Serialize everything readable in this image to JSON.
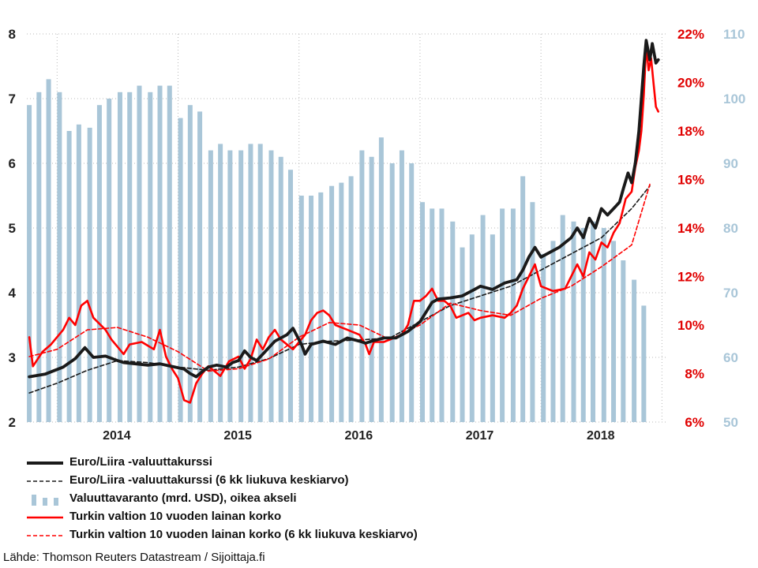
{
  "chart_data": {
    "type": "line",
    "title": "",
    "x_ticks": [
      "2014",
      "2015",
      "2016",
      "2017",
      "2018"
    ],
    "x_range": [
      2013.25,
      2018.55
    ],
    "axes": {
      "left": {
        "ticks": [
          "2",
          "3",
          "4",
          "5",
          "6",
          "7",
          "8"
        ],
        "ylim": [
          2,
          8
        ]
      },
      "right_rate": {
        "ticks": [
          "6%",
          "8%",
          "10%",
          "12%",
          "14%",
          "16%",
          "18%",
          "20%",
          "22%"
        ],
        "ylim": [
          6,
          22
        ]
      },
      "right_reserves": {
        "ticks": [
          "50",
          "60",
          "70",
          "80",
          "90",
          "100",
          "110"
        ],
        "ylim": [
          50,
          110
        ]
      }
    },
    "grid": "dotted",
    "legend_position": "bottom",
    "series": [
      {
        "name": "Euro/Liira -valuuttakurssi",
        "axis": "left",
        "style": "solid-thick",
        "color": "#1a1a1a",
        "points": [
          [
            2013.27,
            2.7
          ],
          [
            2013.4,
            2.74
          ],
          [
            2013.55,
            2.85
          ],
          [
            2013.65,
            2.98
          ],
          [
            2013.73,
            3.15
          ],
          [
            2013.8,
            3.0
          ],
          [
            2013.9,
            3.02
          ],
          [
            2014.0,
            2.95
          ],
          [
            2014.05,
            2.92
          ],
          [
            2014.15,
            2.9
          ],
          [
            2014.25,
            2.88
          ],
          [
            2014.35,
            2.9
          ],
          [
            2014.45,
            2.86
          ],
          [
            2014.55,
            2.82
          ],
          [
            2014.6,
            2.75
          ],
          [
            2014.65,
            2.7
          ],
          [
            2014.7,
            2.78
          ],
          [
            2014.75,
            2.85
          ],
          [
            2014.82,
            2.88
          ],
          [
            2014.9,
            2.85
          ],
          [
            2014.95,
            2.92
          ],
          [
            2015.0,
            2.95
          ],
          [
            2015.05,
            3.1
          ],
          [
            2015.1,
            3.0
          ],
          [
            2015.15,
            2.95
          ],
          [
            2015.2,
            3.05
          ],
          [
            2015.3,
            3.25
          ],
          [
            2015.4,
            3.35
          ],
          [
            2015.45,
            3.45
          ],
          [
            2015.52,
            3.2
          ],
          [
            2015.55,
            3.05
          ],
          [
            2015.6,
            3.2
          ],
          [
            2015.7,
            3.25
          ],
          [
            2015.8,
            3.2
          ],
          [
            2015.9,
            3.3
          ],
          [
            2016.0,
            3.25
          ],
          [
            2016.05,
            3.22
          ],
          [
            2016.1,
            3.25
          ],
          [
            2016.2,
            3.3
          ],
          [
            2016.3,
            3.3
          ],
          [
            2016.4,
            3.4
          ],
          [
            2016.5,
            3.55
          ],
          [
            2016.55,
            3.7
          ],
          [
            2016.6,
            3.85
          ],
          [
            2016.65,
            3.9
          ],
          [
            2016.75,
            3.92
          ],
          [
            2016.85,
            3.95
          ],
          [
            2016.95,
            4.05
          ],
          [
            2017.0,
            4.1
          ],
          [
            2017.1,
            4.05
          ],
          [
            2017.2,
            4.15
          ],
          [
            2017.3,
            4.2
          ],
          [
            2017.35,
            4.35
          ],
          [
            2017.4,
            4.55
          ],
          [
            2017.45,
            4.7
          ],
          [
            2017.5,
            4.55
          ],
          [
            2017.55,
            4.6
          ],
          [
            2017.65,
            4.7
          ],
          [
            2017.75,
            4.85
          ],
          [
            2017.8,
            5.0
          ],
          [
            2017.85,
            4.85
          ],
          [
            2017.9,
            5.15
          ],
          [
            2017.95,
            5.0
          ],
          [
            2018.0,
            5.3
          ],
          [
            2018.05,
            5.2
          ],
          [
            2018.1,
            5.3
          ],
          [
            2018.15,
            5.4
          ],
          [
            2018.18,
            5.6
          ],
          [
            2018.22,
            5.85
          ],
          [
            2018.25,
            5.7
          ],
          [
            2018.28,
            6.0
          ],
          [
            2018.31,
            6.5
          ],
          [
            2018.33,
            7.0
          ],
          [
            2018.35,
            7.5
          ],
          [
            2018.37,
            7.9
          ],
          [
            2018.4,
            7.6
          ],
          [
            2018.42,
            7.85
          ],
          [
            2018.45,
            7.55
          ],
          [
            2018.47,
            7.6
          ]
        ]
      },
      {
        "name": "Euro/Liira -valuuttakurssi (6 kk liukuva keskiarvo)",
        "axis": "left",
        "style": "dashed",
        "color": "#1a1a1a",
        "points": [
          [
            2013.27,
            2.45
          ],
          [
            2013.5,
            2.6
          ],
          [
            2013.75,
            2.8
          ],
          [
            2014.0,
            2.95
          ],
          [
            2014.25,
            2.92
          ],
          [
            2014.5,
            2.85
          ],
          [
            2014.75,
            2.8
          ],
          [
            2015.0,
            2.85
          ],
          [
            2015.25,
            2.98
          ],
          [
            2015.5,
            3.2
          ],
          [
            2015.75,
            3.25
          ],
          [
            2016.0,
            3.27
          ],
          [
            2016.25,
            3.3
          ],
          [
            2016.5,
            3.55
          ],
          [
            2016.75,
            3.8
          ],
          [
            2017.0,
            3.95
          ],
          [
            2017.25,
            4.1
          ],
          [
            2017.5,
            4.35
          ],
          [
            2017.75,
            4.6
          ],
          [
            2018.0,
            4.85
          ],
          [
            2018.25,
            5.3
          ],
          [
            2018.4,
            5.65
          ]
        ]
      },
      {
        "name": "Valuuttavaranto (mrd. USD), oikea akseli",
        "axis": "right_reserves",
        "style": "bars",
        "color": "#a9c6d8",
        "points": [
          [
            2013.27,
            99
          ],
          [
            2013.35,
            101
          ],
          [
            2013.43,
            103
          ],
          [
            2013.52,
            101
          ],
          [
            2013.6,
            95
          ],
          [
            2013.68,
            96
          ],
          [
            2013.77,
            95.5
          ],
          [
            2013.85,
            99
          ],
          [
            2013.93,
            100
          ],
          [
            2014.02,
            101
          ],
          [
            2014.1,
            101
          ],
          [
            2014.18,
            102
          ],
          [
            2014.27,
            101
          ],
          [
            2014.35,
            102
          ],
          [
            2014.43,
            102
          ],
          [
            2014.52,
            97
          ],
          [
            2014.6,
            99
          ],
          [
            2014.68,
            98
          ],
          [
            2014.77,
            92
          ],
          [
            2014.85,
            93
          ],
          [
            2014.93,
            92
          ],
          [
            2015.02,
            92
          ],
          [
            2015.1,
            93
          ],
          [
            2015.18,
            93
          ],
          [
            2015.27,
            92
          ],
          [
            2015.35,
            91
          ],
          [
            2015.43,
            89
          ],
          [
            2015.52,
            85
          ],
          [
            2015.6,
            85
          ],
          [
            2015.68,
            85.5
          ],
          [
            2015.77,
            86.5
          ],
          [
            2015.85,
            87
          ],
          [
            2015.93,
            88
          ],
          [
            2016.02,
            92
          ],
          [
            2016.1,
            91
          ],
          [
            2016.18,
            94
          ],
          [
            2016.27,
            90
          ],
          [
            2016.35,
            92
          ],
          [
            2016.43,
            90
          ],
          [
            2016.52,
            84
          ],
          [
            2016.6,
            83
          ],
          [
            2016.68,
            83
          ],
          [
            2016.77,
            81
          ],
          [
            2016.85,
            77
          ],
          [
            2016.93,
            79
          ],
          [
            2017.02,
            82
          ],
          [
            2017.1,
            79
          ],
          [
            2017.18,
            83
          ],
          [
            2017.27,
            83
          ],
          [
            2017.35,
            88
          ],
          [
            2017.43,
            84
          ],
          [
            2017.52,
            76
          ],
          [
            2017.6,
            78
          ],
          [
            2017.68,
            82
          ],
          [
            2017.77,
            81
          ],
          [
            2017.85,
            80
          ],
          [
            2017.93,
            81
          ],
          [
            2018.02,
            80
          ],
          [
            2018.1,
            78
          ],
          [
            2018.18,
            75
          ],
          [
            2018.27,
            72
          ],
          [
            2018.35,
            68
          ]
        ]
      },
      {
        "name": "Turkin valtion 10 vuoden lainan korko",
        "axis": "right_rate",
        "style": "solid",
        "color": "#ff0000",
        "points": [
          [
            2013.27,
            9.5
          ],
          [
            2013.3,
            8.3
          ],
          [
            2013.38,
            8.9
          ],
          [
            2013.45,
            9.2
          ],
          [
            2013.55,
            9.8
          ],
          [
            2013.6,
            10.3
          ],
          [
            2013.65,
            10.0
          ],
          [
            2013.7,
            10.8
          ],
          [
            2013.75,
            11.0
          ],
          [
            2013.8,
            10.3
          ],
          [
            2013.9,
            9.8
          ],
          [
            2013.95,
            9.4
          ],
          [
            2014.05,
            8.8
          ],
          [
            2014.1,
            9.2
          ],
          [
            2014.2,
            9.3
          ],
          [
            2014.3,
            9.0
          ],
          [
            2014.35,
            9.8
          ],
          [
            2014.4,
            8.7
          ],
          [
            2014.45,
            8.2
          ],
          [
            2014.5,
            7.8
          ],
          [
            2014.55,
            6.9
          ],
          [
            2014.6,
            6.8
          ],
          [
            2014.65,
            7.6
          ],
          [
            2014.7,
            8.0
          ],
          [
            2014.75,
            8.3
          ],
          [
            2014.8,
            8.1
          ],
          [
            2014.85,
            7.9
          ],
          [
            2014.92,
            8.5
          ],
          [
            2015.0,
            8.7
          ],
          [
            2015.05,
            8.2
          ],
          [
            2015.1,
            8.6
          ],
          [
            2015.15,
            9.4
          ],
          [
            2015.2,
            9.0
          ],
          [
            2015.25,
            9.5
          ],
          [
            2015.3,
            9.8
          ],
          [
            2015.35,
            9.4
          ],
          [
            2015.45,
            9.0
          ],
          [
            2015.55,
            9.6
          ],
          [
            2015.6,
            10.2
          ],
          [
            2015.65,
            10.5
          ],
          [
            2015.7,
            10.6
          ],
          [
            2015.75,
            10.4
          ],
          [
            2015.8,
            10.0
          ],
          [
            2015.9,
            9.8
          ],
          [
            2016.0,
            9.6
          ],
          [
            2016.05,
            9.2
          ],
          [
            2016.08,
            8.8
          ],
          [
            2016.12,
            9.3
          ],
          [
            2016.2,
            9.3
          ],
          [
            2016.3,
            9.5
          ],
          [
            2016.35,
            9.6
          ],
          [
            2016.4,
            10.0
          ],
          [
            2016.45,
            11.0
          ],
          [
            2016.5,
            11.0
          ],
          [
            2016.55,
            11.2
          ],
          [
            2016.6,
            11.5
          ],
          [
            2016.65,
            11.0
          ],
          [
            2016.7,
            11.0
          ],
          [
            2016.75,
            10.8
          ],
          [
            2016.8,
            10.3
          ],
          [
            2016.9,
            10.5
          ],
          [
            2016.95,
            10.2
          ],
          [
            2017.0,
            10.3
          ],
          [
            2017.1,
            10.4
          ],
          [
            2017.2,
            10.3
          ],
          [
            2017.25,
            10.5
          ],
          [
            2017.3,
            10.8
          ],
          [
            2017.35,
            11.5
          ],
          [
            2017.4,
            12.0
          ],
          [
            2017.45,
            12.5
          ],
          [
            2017.5,
            11.6
          ],
          [
            2017.55,
            11.5
          ],
          [
            2017.6,
            11.4
          ],
          [
            2017.7,
            11.5
          ],
          [
            2017.75,
            12.0
          ],
          [
            2017.8,
            12.5
          ],
          [
            2017.85,
            12.0
          ],
          [
            2017.9,
            13.0
          ],
          [
            2017.95,
            12.7
          ],
          [
            2018.0,
            13.4
          ],
          [
            2018.05,
            13.2
          ],
          [
            2018.1,
            13.8
          ],
          [
            2018.15,
            14.2
          ],
          [
            2018.2,
            15.2
          ],
          [
            2018.25,
            15.5
          ],
          [
            2018.28,
            16.5
          ],
          [
            2018.31,
            17.2
          ],
          [
            2018.33,
            18.0
          ],
          [
            2018.35,
            19.5
          ],
          [
            2018.37,
            21.5
          ],
          [
            2018.39,
            20.5
          ],
          [
            2018.41,
            21.0
          ],
          [
            2018.43,
            20.0
          ],
          [
            2018.45,
            19.0
          ],
          [
            2018.47,
            18.8
          ]
        ]
      },
      {
        "name": "Turkin valtion 10 vuoden lainan korko (6 kk liukuva keskiarvo)",
        "axis": "right_rate",
        "style": "dashed",
        "color": "#ff0000",
        "points": [
          [
            2013.27,
            8.7
          ],
          [
            2013.5,
            9.0
          ],
          [
            2013.75,
            9.8
          ],
          [
            2014.0,
            9.9
          ],
          [
            2014.25,
            9.5
          ],
          [
            2014.5,
            8.9
          ],
          [
            2014.75,
            8.1
          ],
          [
            2015.0,
            8.2
          ],
          [
            2015.25,
            8.6
          ],
          [
            2015.5,
            9.5
          ],
          [
            2015.75,
            10.1
          ],
          [
            2016.0,
            10.0
          ],
          [
            2016.25,
            9.4
          ],
          [
            2016.5,
            10.0
          ],
          [
            2016.75,
            10.9
          ],
          [
            2017.0,
            10.6
          ],
          [
            2017.25,
            10.4
          ],
          [
            2017.5,
            11.1
          ],
          [
            2017.75,
            11.6
          ],
          [
            2018.0,
            12.4
          ],
          [
            2018.25,
            13.3
          ],
          [
            2018.4,
            15.8
          ]
        ]
      }
    ]
  },
  "source": "Lähde: Thomson Reuters Datastream / Sijoittaja.fi"
}
